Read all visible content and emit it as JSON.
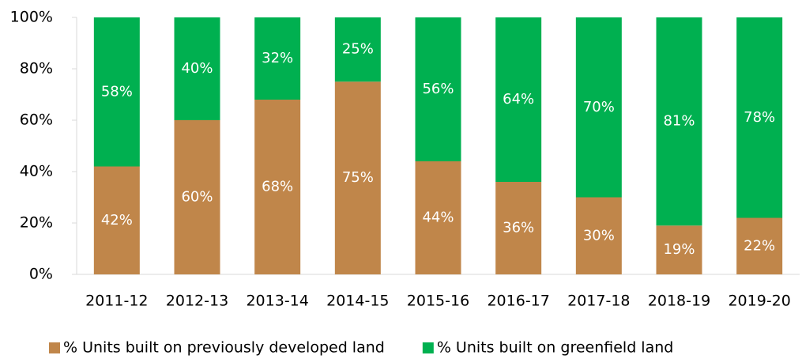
{
  "chart_data": {
    "type": "bar",
    "stacked": true,
    "categories": [
      "2011-12",
      "2012-13",
      "2013-14",
      "2014-15",
      "2015-16",
      "2016-17",
      "2017-18",
      "2018-19",
      "2019-20"
    ],
    "series": [
      {
        "name": "% Units built on previously developed land",
        "color": "#c0864a",
        "values": [
          42,
          60,
          68,
          75,
          44,
          36,
          30,
          19,
          22
        ],
        "value_labels": [
          "42%",
          "60%",
          "68%",
          "75%",
          "44%",
          "36%",
          "30%",
          "19%",
          "22%"
        ]
      },
      {
        "name": "% Units built on greenfield land",
        "color": "#00b050",
        "values": [
          58,
          40,
          32,
          25,
          56,
          64,
          70,
          81,
          78
        ],
        "value_labels": [
          "58%",
          "40%",
          "32%",
          "25%",
          "56%",
          "64%",
          "70%",
          "81%",
          "78%"
        ]
      }
    ],
    "ylim": [
      0,
      100
    ],
    "yticks": [
      {
        "value": 0,
        "label": "0%"
      },
      {
        "value": 20,
        "label": "20%"
      },
      {
        "value": 40,
        "label": "40%"
      },
      {
        "value": 60,
        "label": "60%"
      },
      {
        "value": 80,
        "label": "80%"
      },
      {
        "value": 100,
        "label": "100%"
      }
    ],
    "legend": "bottom"
  }
}
